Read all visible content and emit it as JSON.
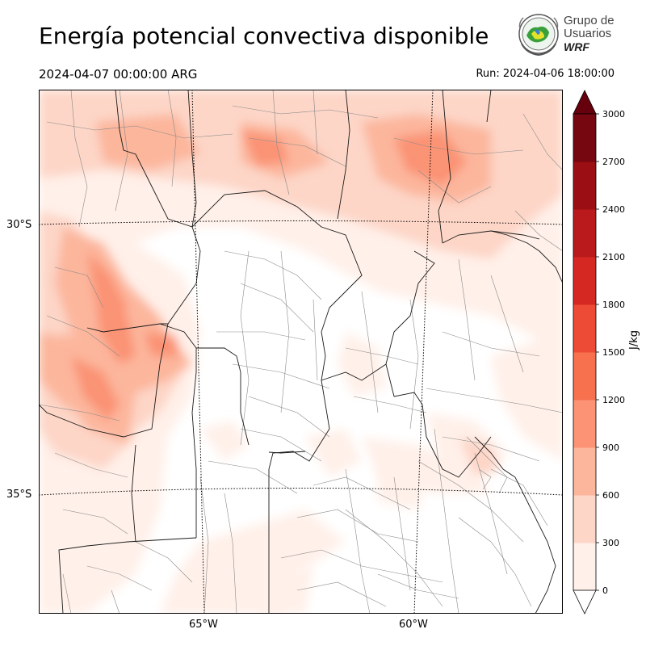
{
  "header": {
    "title": "Energía potencial convectiva disponible",
    "valid_time": "2024-04-07 00:00:00 ARG",
    "run_time": "Run: 2024-04-06 18:00:00"
  },
  "logo": {
    "line1": "Grupo de",
    "line2": "Usuarios",
    "line3": "WRF"
  },
  "map": {
    "lat_labels": [
      "30°S",
      "35°S"
    ],
    "lon_labels": [
      "65°W",
      "60°W"
    ]
  },
  "colorbar": {
    "label": "J/kg",
    "ticks": [
      "0",
      "300",
      "600",
      "900",
      "1200",
      "1500",
      "1800",
      "2100",
      "2400",
      "2700",
      "3000"
    ],
    "colors": [
      "#fff0e9",
      "#fdd6c7",
      "#fcb69c",
      "#fb9374",
      "#f7714f",
      "#ee4b36",
      "#d62823",
      "#ba1a1b",
      "#9b0e13",
      "#76060f"
    ],
    "under_color": "#ffffff",
    "over_color": "#67000d"
  },
  "colors": {
    "province_border": "#1a1a1a",
    "department_border": "#8a8a8a",
    "graticule": "#000000"
  }
}
